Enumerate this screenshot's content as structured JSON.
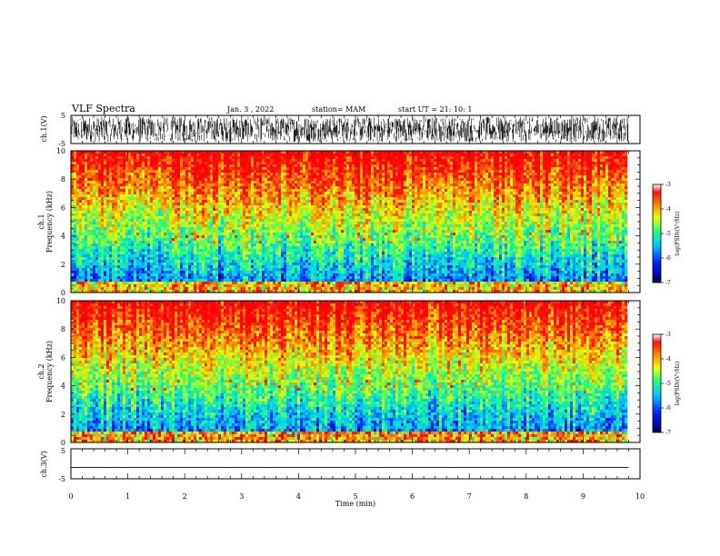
{
  "header": {
    "title": "VLF Spectra",
    "date": "Jan. 3 , 2022",
    "station": "station= MAM",
    "start": "start UT = 21: 10: 1"
  },
  "chart_data": [
    {
      "type": "line",
      "panel": "waveform-ch1",
      "ylabel": "ch.1(V)",
      "ylim": [
        -5,
        5
      ],
      "yticks": [
        "5",
        "-5"
      ],
      "description_values": {
        "amplitude_range_V": [
          -4.5,
          4.5
        ]
      }
    },
    {
      "type": "heatmap",
      "panel": "spectrogram-ch1",
      "ylabel_line1": "ch.1",
      "ylabel_line2": "Frequency (kHz)",
      "ylim": [
        0,
        10
      ],
      "yticks": [
        "0",
        "2",
        "4",
        "6",
        "8",
        "10"
      ],
      "colorbar": {
        "label": "log(PSD)(V²/Hz)",
        "range": [
          -7,
          -3
        ],
        "ticks": [
          "-3",
          "-4",
          "-5",
          "-6",
          "-7"
        ]
      }
    },
    {
      "type": "heatmap",
      "panel": "spectrogram-ch2",
      "ylabel_line1": "ch.2",
      "ylabel_line2": "Frequency (kHz)",
      "ylim": [
        0,
        10
      ],
      "yticks": [
        "0",
        "2",
        "4",
        "6",
        "8",
        "10"
      ],
      "colorbar": {
        "label": "log(PSD)(V²/Hz)",
        "range": [
          -7,
          -3
        ],
        "ticks": [
          "-3",
          "-4",
          "-5",
          "-6",
          "-7"
        ]
      }
    },
    {
      "type": "line",
      "panel": "waveform-ch3",
      "ylabel": "ch.3(V)",
      "ylim": [
        -5,
        5
      ],
      "yticks": [
        "5",
        "-5"
      ],
      "description_values": {
        "constant_value_V": -1.2
      }
    }
  ],
  "xaxis": {
    "label": "Time (min)",
    "range": [
      0,
      10
    ],
    "data_end": 9.8,
    "ticks": [
      "0",
      "1",
      "2",
      "3",
      "4",
      "5",
      "6",
      "7",
      "8",
      "9",
      "10"
    ]
  },
  "colors": {
    "frame": "#000000",
    "background": "#ffffff"
  }
}
